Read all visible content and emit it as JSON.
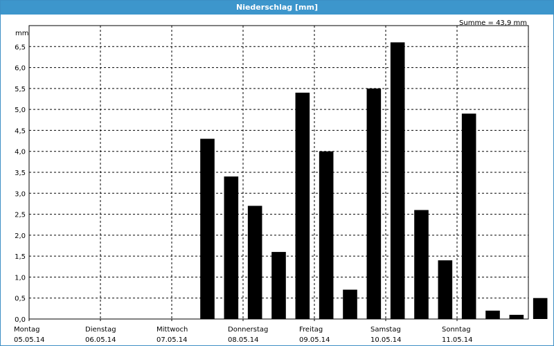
{
  "window": {
    "title": "Niederschlag [mm]"
  },
  "chart_data": {
    "type": "bar",
    "title": "Niederschlag [mm]",
    "unit_label": "mm",
    "annotation": "Summe = 43,9 mm",
    "ylim": [
      0,
      7.0
    ],
    "y_ticks": [
      "0,0",
      "0,5",
      "1,0",
      "1,5",
      "2,0",
      "2,5",
      "3,0",
      "3,5",
      "4,0",
      "4,5",
      "5,0",
      "5,5",
      "6,0",
      "6,5"
    ],
    "grid": true,
    "days": [
      {
        "name": "Montag",
        "date": "05.05.14"
      },
      {
        "name": "Dienstag",
        "date": "06.05.14"
      },
      {
        "name": "Mittwoch",
        "date": "07.05.14"
      },
      {
        "name": "Donnerstag",
        "date": "08.05.14"
      },
      {
        "name": "Freitag",
        "date": "09.05.14"
      },
      {
        "name": "Samstag",
        "date": "10.05.14"
      },
      {
        "name": "Sonntag",
        "date": "11.05.14"
      }
    ],
    "bar_interval_hours": 8,
    "values": [
      0,
      0,
      0,
      0,
      0,
      0,
      0,
      4.3,
      3.4,
      2.7,
      1.6,
      5.4,
      4.0,
      0.7,
      5.5,
      6.6,
      2.6,
      1.4,
      4.9,
      0.2,
      0.1,
      0.5
    ]
  }
}
